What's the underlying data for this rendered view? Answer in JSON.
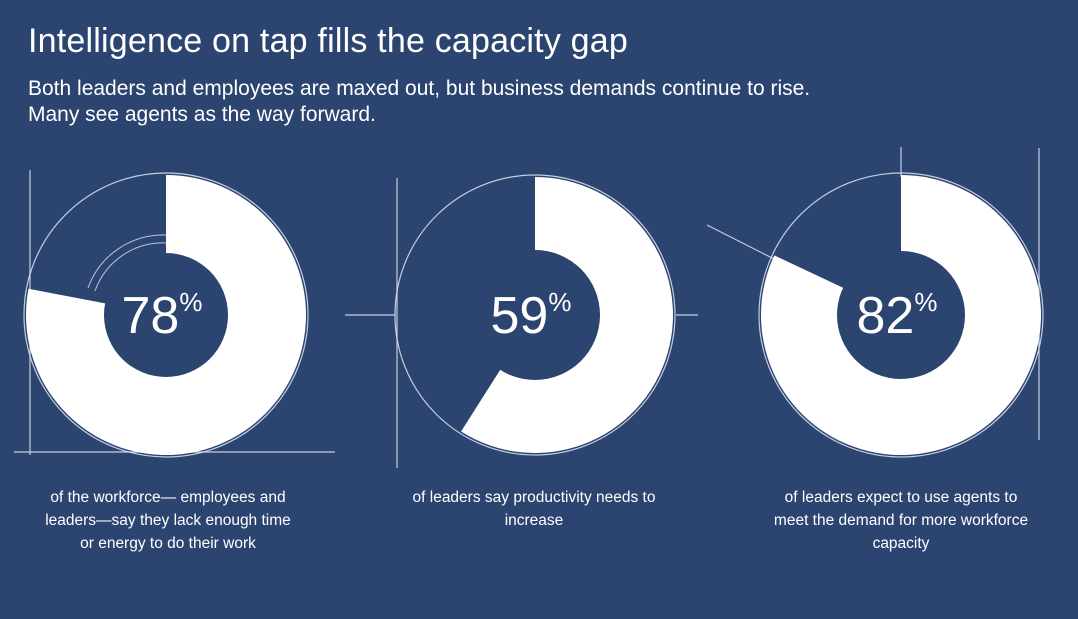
{
  "header": {
    "title": "Intelligence on tap fills the capacity gap",
    "subtitle_line1": "Both leaders and employees are maxed out, but business demands continue to rise.",
    "subtitle_line2": "Many see agents as the way forward."
  },
  "colors": {
    "background": "#2c4470",
    "filled": "#ffffff",
    "accent_line": "#dfe6f2"
  },
  "chart_data": [
    {
      "type": "pie",
      "title": "",
      "value": 78,
      "value_label": "78",
      "unit": "%",
      "caption": "of the workforce— employees and leaders—say they lack enough time or energy to do their work",
      "series": [
        {
          "name": "filled",
          "values": [
            78
          ]
        },
        {
          "name": "remaining",
          "values": [
            22
          ]
        }
      ]
    },
    {
      "type": "pie",
      "title": "",
      "value": 59,
      "value_label": "59",
      "unit": "%",
      "caption": "of leaders say productivity needs to increase",
      "series": [
        {
          "name": "filled",
          "values": [
            59
          ]
        },
        {
          "name": "remaining",
          "values": [
            41
          ]
        }
      ]
    },
    {
      "type": "pie",
      "title": "",
      "value": 82,
      "value_label": "82",
      "unit": "%",
      "caption": "of leaders expect to use agents to meet the demand for more workforce capacity",
      "series": [
        {
          "name": "filled",
          "values": [
            82
          ]
        },
        {
          "name": "remaining",
          "values": [
            18
          ]
        }
      ]
    }
  ]
}
